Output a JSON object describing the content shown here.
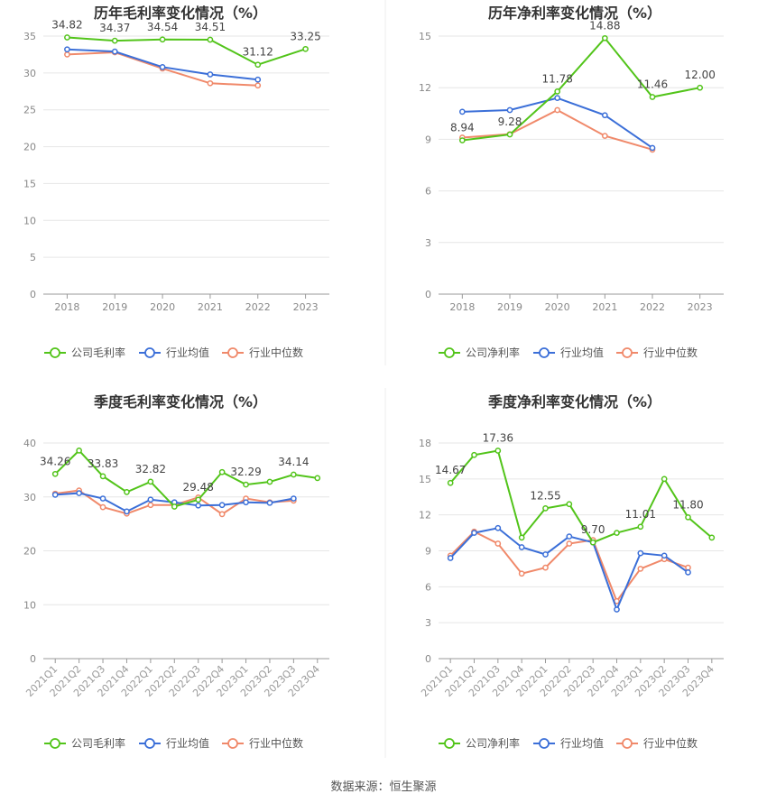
{
  "footer": {
    "label": "数据来源：",
    "source": "恒生聚源"
  },
  "colors": {
    "company": "#52c41a",
    "industry_avg": "#3b6fd8",
    "industry_median": "#f0896a"
  },
  "chart_data": [
    {
      "type": "line",
      "title": "历年毛利率变化情况（%）",
      "categories": [
        "2018",
        "2019",
        "2020",
        "2021",
        "2022",
        "2023"
      ],
      "ylim": [
        0,
        35
      ],
      "yticks": [
        0,
        5,
        10,
        15,
        20,
        25,
        30,
        35
      ],
      "grid": true,
      "legend": "bottom",
      "series": [
        {
          "name": "公司毛利率",
          "values": [
            34.82,
            34.37,
            34.54,
            34.51,
            31.12,
            33.25
          ]
        },
        {
          "name": "行业均值",
          "values": [
            33.2,
            32.9,
            30.8,
            29.8,
            29.1,
            null
          ]
        },
        {
          "name": "行业中位数",
          "values": [
            32.5,
            32.8,
            30.6,
            28.6,
            28.3,
            null
          ]
        }
      ],
      "data_labels": [
        "34.82",
        "34.37",
        "34.54",
        "34.51",
        "31.12",
        "33.25"
      ]
    },
    {
      "type": "line",
      "title": "历年净利率变化情况（%）",
      "categories": [
        "2018",
        "2019",
        "2020",
        "2021",
        "2022",
        "2023"
      ],
      "ylim": [
        0,
        15
      ],
      "yticks": [
        0,
        3,
        6,
        9,
        12,
        15
      ],
      "grid": true,
      "legend": "bottom",
      "series": [
        {
          "name": "公司净利率",
          "values": [
            8.94,
            9.28,
            11.78,
            14.88,
            11.46,
            12.0
          ]
        },
        {
          "name": "行业均值",
          "values": [
            10.6,
            10.7,
            11.4,
            10.4,
            8.5,
            null
          ]
        },
        {
          "name": "行业中位数",
          "values": [
            9.1,
            9.3,
            10.7,
            9.2,
            8.4,
            null
          ]
        }
      ],
      "data_labels": [
        "8.94",
        "9.28",
        "11.78",
        "14.88",
        "11.46",
        "12.00"
      ]
    },
    {
      "type": "line",
      "title": "季度毛利率变化情况（%）",
      "categories": [
        "2021Q1",
        "2021Q2",
        "2021Q3",
        "2021Q4",
        "2022Q1",
        "2022Q2",
        "2022Q3",
        "2022Q4",
        "2023Q1",
        "2023Q2",
        "2023Q3",
        "2023Q4"
      ],
      "ylim": [
        0,
        40
      ],
      "yticks": [
        0,
        10,
        20,
        30,
        40
      ],
      "grid": true,
      "legend": "bottom",
      "series": [
        {
          "name": "公司毛利率",
          "values": [
            34.26,
            38.6,
            33.83,
            30.9,
            32.82,
            28.2,
            29.48,
            34.6,
            32.29,
            32.8,
            34.14,
            33.5
          ]
        },
        {
          "name": "行业均值",
          "values": [
            30.4,
            30.7,
            29.7,
            27.3,
            29.5,
            29.0,
            28.4,
            28.5,
            29.0,
            28.9,
            29.7,
            null
          ]
        },
        {
          "name": "行业中位数",
          "values": [
            30.6,
            31.2,
            28.1,
            26.9,
            28.5,
            28.5,
            29.9,
            26.8,
            29.7,
            29.0,
            29.3,
            null
          ]
        }
      ],
      "data_labels": [
        "34.26",
        "",
        "33.83",
        "",
        "32.82",
        "",
        "29.48",
        "",
        "32.29",
        "",
        "34.14",
        ""
      ]
    },
    {
      "type": "line",
      "title": "季度净利率变化情况（%）",
      "categories": [
        "2021Q1",
        "2021Q2",
        "2021Q3",
        "2021Q4",
        "2022Q1",
        "2022Q2",
        "2022Q3",
        "2022Q4",
        "2023Q1",
        "2023Q2",
        "2023Q3",
        "2023Q4"
      ],
      "ylim": [
        0,
        18
      ],
      "yticks": [
        0,
        3,
        6,
        9,
        12,
        15,
        18
      ],
      "grid": true,
      "legend": "bottom",
      "series": [
        {
          "name": "公司净利率",
          "values": [
            14.67,
            17.0,
            17.36,
            10.1,
            12.55,
            12.9,
            9.7,
            10.5,
            11.01,
            15.0,
            11.8,
            10.1
          ]
        },
        {
          "name": "行业均值",
          "values": [
            8.4,
            10.5,
            10.9,
            9.3,
            8.7,
            10.2,
            9.7,
            4.1,
            8.8,
            8.6,
            7.2,
            null
          ]
        },
        {
          "name": "行业中位数",
          "values": [
            8.6,
            10.6,
            9.6,
            7.1,
            7.6,
            9.6,
            9.9,
            4.8,
            7.5,
            8.3,
            7.6,
            null
          ]
        }
      ],
      "data_labels": [
        "14.67",
        "",
        "17.36",
        "",
        "12.55",
        "",
        "9.70",
        "",
        "11.01",
        "",
        "11.80",
        ""
      ]
    }
  ]
}
